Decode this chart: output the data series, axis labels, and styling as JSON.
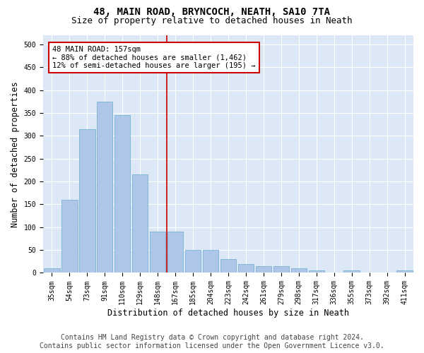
{
  "title": "48, MAIN ROAD, BRYNCOCH, NEATH, SA10 7TA",
  "subtitle": "Size of property relative to detached houses in Neath",
  "xlabel": "Distribution of detached houses by size in Neath",
  "ylabel": "Number of detached properties",
  "categories": [
    "35sqm",
    "54sqm",
    "73sqm",
    "91sqm",
    "110sqm",
    "129sqm",
    "148sqm",
    "167sqm",
    "185sqm",
    "204sqm",
    "223sqm",
    "242sqm",
    "261sqm",
    "279sqm",
    "298sqm",
    "317sqm",
    "336sqm",
    "355sqm",
    "373sqm",
    "392sqm",
    "411sqm"
  ],
  "values": [
    10,
    160,
    315,
    375,
    345,
    215,
    90,
    90,
    50,
    50,
    30,
    20,
    15,
    15,
    10,
    5,
    0,
    5,
    0,
    0,
    5
  ],
  "bar_color": "#aec6e8",
  "bar_edge_color": "#6aaad4",
  "vline_color": "#cc0000",
  "annotation_text": "48 MAIN ROAD: 157sqm\n← 88% of detached houses are smaller (1,462)\n12% of semi-detached houses are larger (195) →",
  "annotation_box_color": "#ffffff",
  "annotation_box_edge_color": "#cc0000",
  "ylim": [
    0,
    520
  ],
  "yticks": [
    0,
    50,
    100,
    150,
    200,
    250,
    300,
    350,
    400,
    450,
    500
  ],
  "footer_line1": "Contains HM Land Registry data © Crown copyright and database right 2024.",
  "footer_line2": "Contains public sector information licensed under the Open Government Licence v3.0.",
  "plot_bg_color": "#dce8f5",
  "title_fontsize": 10,
  "subtitle_fontsize": 9,
  "tick_fontsize": 7,
  "label_fontsize": 8.5,
  "footer_fontsize": 7,
  "annotation_fontsize": 7.5
}
